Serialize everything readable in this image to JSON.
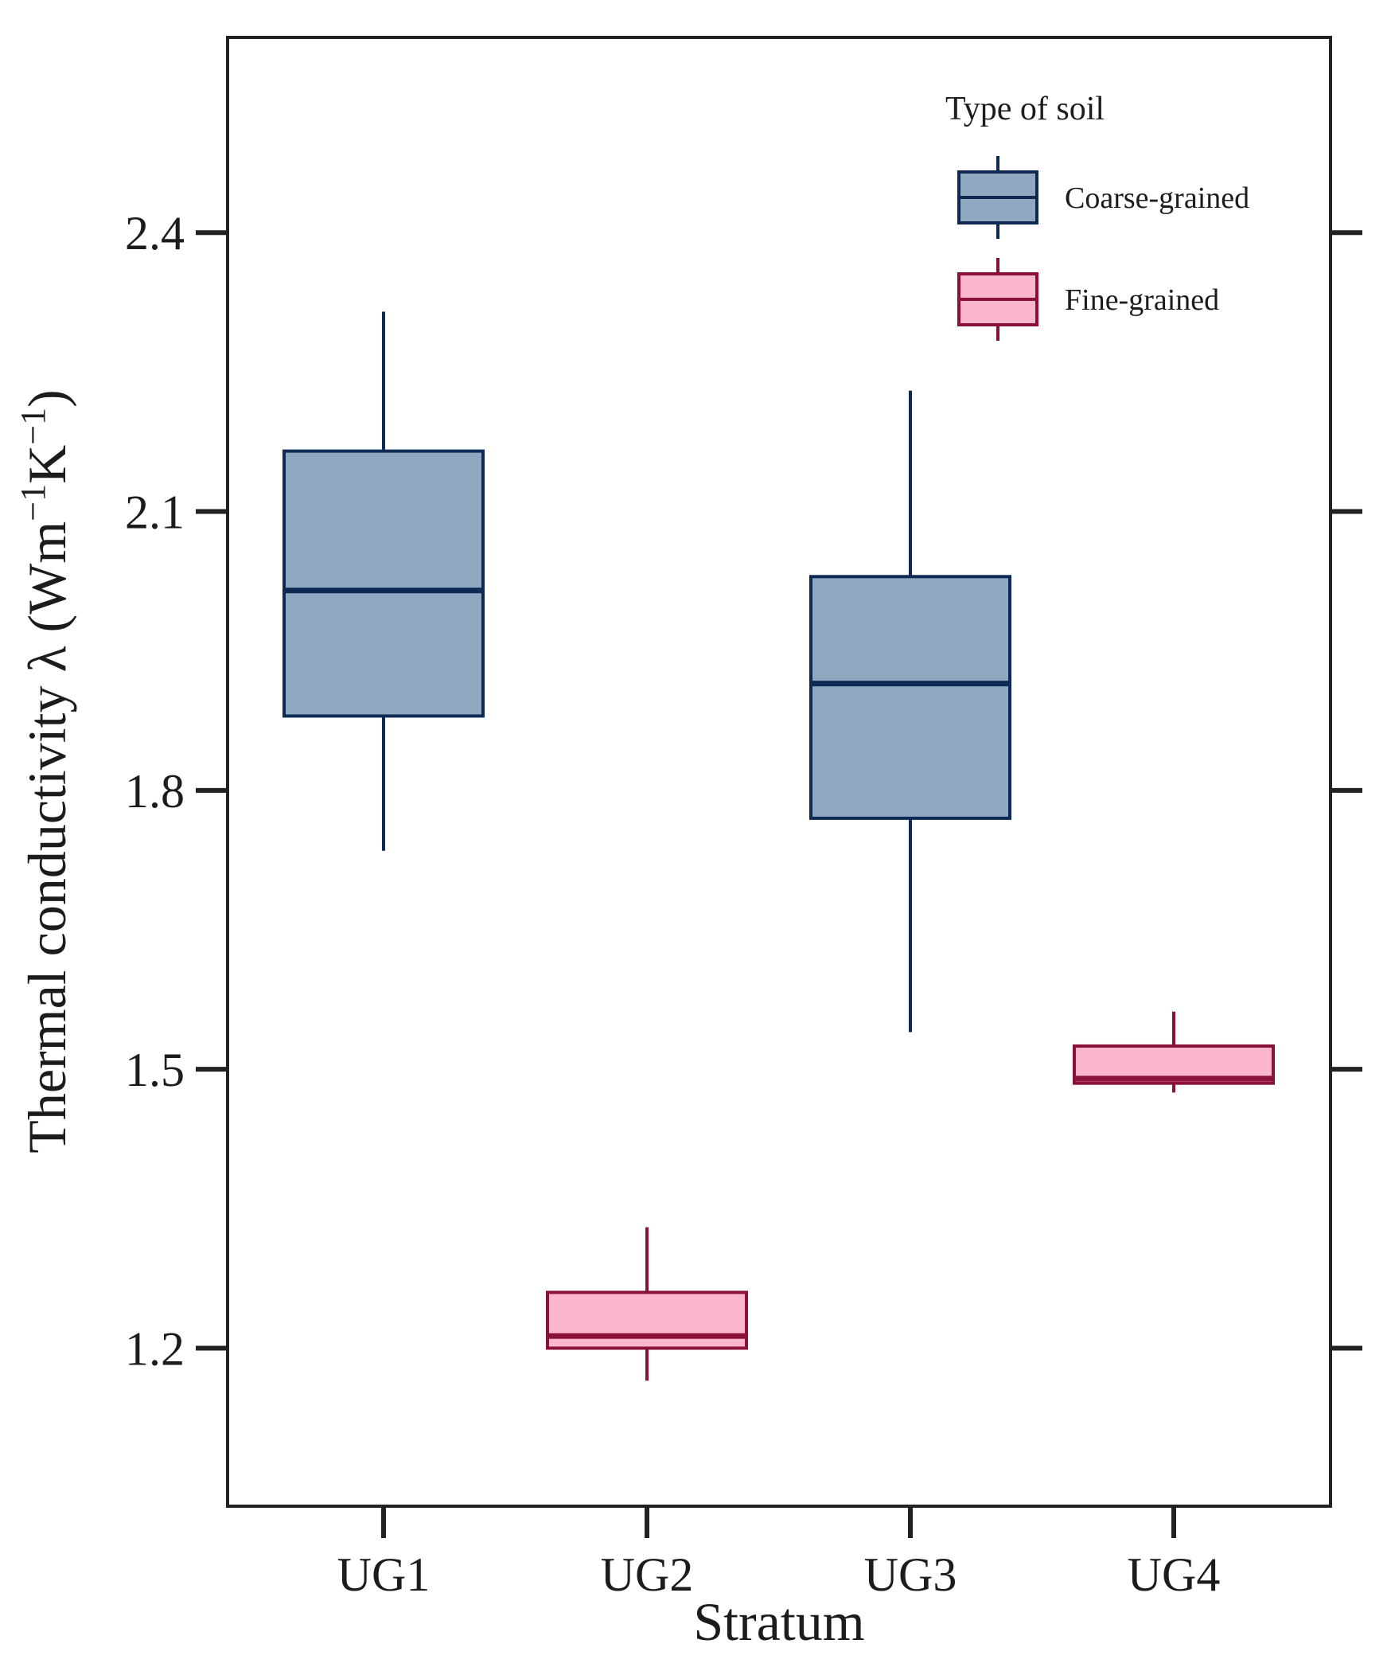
{
  "colors": {
    "coarse_fill": "#8fa8c0",
    "coarse_stroke": "#0d2a55",
    "fine_fill": "#fbb6cc",
    "fine_stroke": "#8a1238"
  },
  "chart_data": {
    "type": "boxplot",
    "title": "",
    "xlabel": "Stratum",
    "ylabel_main": "Thermal conductivity λ (Wm",
    "ylabel_sup1": "−1",
    "ylabel_mid": "K",
    "ylabel_sup2": "−1",
    "ylabel_end": ")",
    "ylim": [
      1.03,
      2.61
    ],
    "yticks": [
      1.2,
      1.5,
      1.8,
      2.1,
      2.4
    ],
    "ytick_labels": [
      "1.2",
      "1.5",
      "1.8",
      "2.1",
      "2.4"
    ],
    "categories": [
      "UG1",
      "UG2",
      "UG3",
      "UG4"
    ],
    "legend": {
      "title": "Type of soil",
      "position": "top-right",
      "entries": [
        {
          "label": "Coarse-grained",
          "group": "coarse"
        },
        {
          "label": "Fine-grained",
          "group": "fine"
        }
      ]
    },
    "boxes": [
      {
        "category": "UG1",
        "group": "coarse",
        "whisker_low": 1.735,
        "q1": 1.88,
        "median": 2.015,
        "q3": 2.165,
        "whisker_high": 2.315
      },
      {
        "category": "UG2",
        "group": "fine",
        "whisker_low": 1.165,
        "q1": 1.2,
        "median": 1.213,
        "q3": 1.26,
        "whisker_high": 1.33
      },
      {
        "category": "UG3",
        "group": "coarse",
        "whisker_low": 1.54,
        "q1": 1.77,
        "median": 1.915,
        "q3": 2.03,
        "whisker_high": 2.23
      },
      {
        "category": "UG4",
        "group": "fine",
        "whisker_low": 1.475,
        "q1": 1.485,
        "median": 1.49,
        "q3": 1.525,
        "whisker_high": 1.562
      }
    ]
  }
}
